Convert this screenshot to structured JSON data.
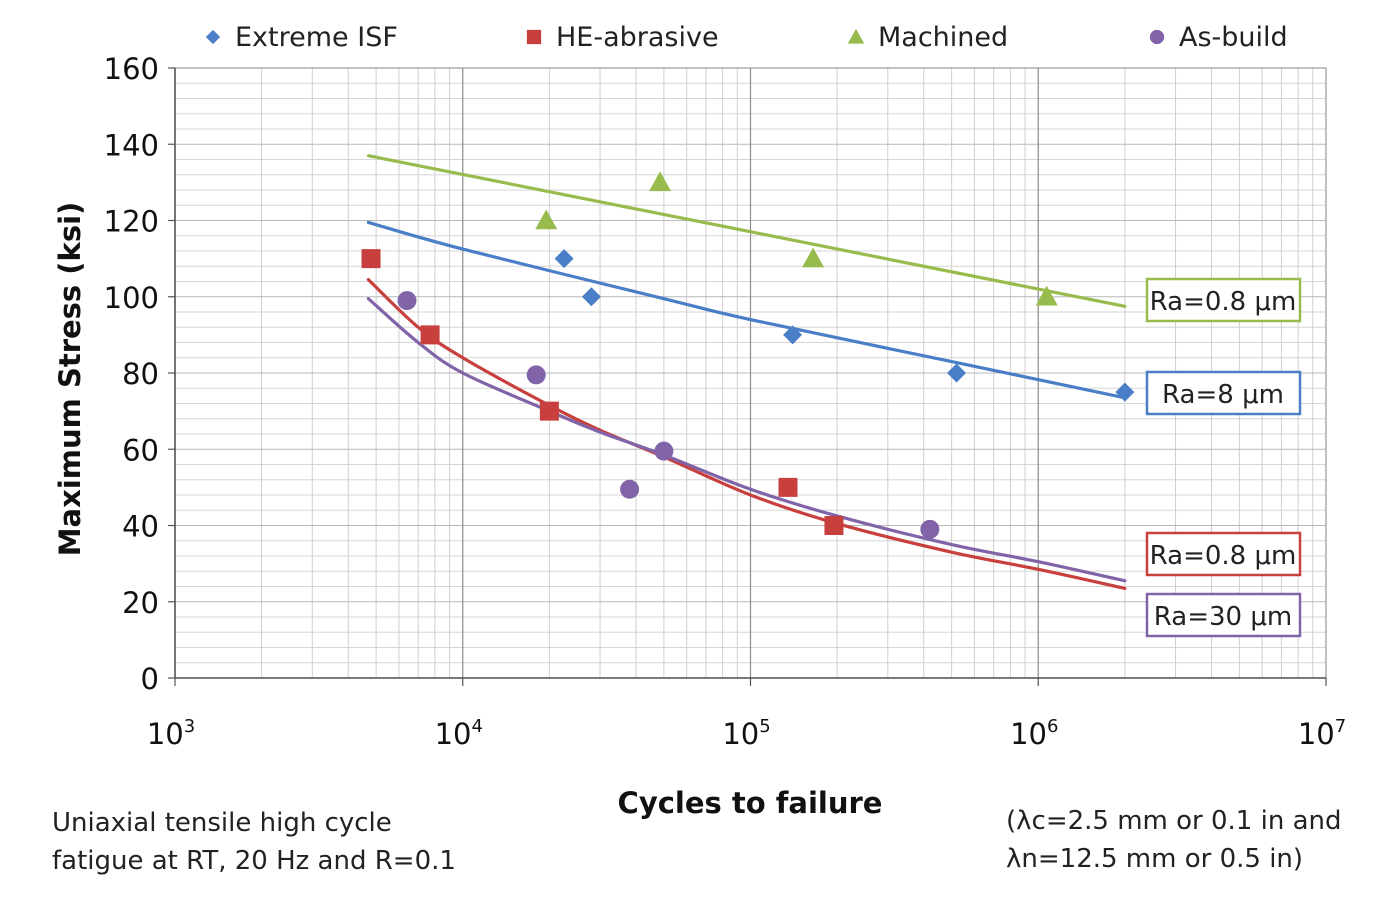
{
  "chart_data": {
    "type": "scatter",
    "xscale": "log",
    "xlim": [
      1000,
      10000000
    ],
    "ylim": [
      0,
      160
    ],
    "yticks": [
      0,
      20,
      40,
      60,
      80,
      100,
      120,
      140,
      160
    ],
    "xticks": [
      {
        "base": "10",
        "exp": "3"
      },
      {
        "base": "10",
        "exp": "4"
      },
      {
        "base": "10",
        "exp": "5"
      },
      {
        "base": "10",
        "exp": "6"
      },
      {
        "base": "10",
        "exp": "7"
      }
    ],
    "xlabel": "Cycles to failure",
    "ylabel": "Maximum Stress (ksi)",
    "grid": true,
    "legend_position": "top",
    "series": [
      {
        "name": "Extreme ISF",
        "marker": "diamond",
        "color": "#4a7ec6",
        "points": [
          [
            22500,
            110
          ],
          [
            28000,
            100
          ],
          [
            140000,
            90
          ],
          [
            520000,
            80
          ],
          [
            2000000,
            75
          ]
        ]
      },
      {
        "name": "HE-abrasive",
        "marker": "square",
        "color": "#c8403e",
        "points": [
          [
            4800,
            110
          ],
          [
            7700,
            90
          ],
          [
            20000,
            70
          ],
          [
            135000,
            50
          ],
          [
            195000,
            40
          ]
        ]
      },
      {
        "name": "Machined",
        "marker": "triangle",
        "color": "#97bb4c",
        "points": [
          [
            19500,
            120
          ],
          [
            48500,
            130
          ],
          [
            165000,
            110
          ],
          [
            1070000,
            100
          ]
        ]
      },
      {
        "name": "As-build",
        "marker": "circle",
        "color": "#8163a8",
        "points": [
          [
            6400,
            99
          ],
          [
            18000,
            79.5
          ],
          [
            38000,
            49.5
          ],
          [
            50000,
            59.5
          ],
          [
            420000,
            39
          ]
        ]
      }
    ],
    "trendlines": [
      {
        "label": "Ra=0.8 μm",
        "color": "#97bb4c",
        "points": [
          [
            4700,
            137
          ],
          [
            2000000,
            97.5
          ]
        ]
      },
      {
        "label": "Ra=8 μm",
        "color": "#4a7ec6",
        "points": [
          [
            4700,
            119.5
          ],
          [
            10000,
            112.5
          ],
          [
            50000,
            99.5
          ],
          [
            100000,
            94
          ],
          [
            500000,
            83
          ],
          [
            2000000,
            73.5
          ]
        ]
      },
      {
        "label": "Ra=0.8 μm",
        "color": "#c8403e",
        "points": [
          [
            4700,
            104.5
          ],
          [
            7000,
            92
          ],
          [
            10000,
            84
          ],
          [
            20000,
            71.5
          ],
          [
            30000,
            65
          ],
          [
            50000,
            58
          ],
          [
            100000,
            48
          ],
          [
            200000,
            40.5
          ],
          [
            500000,
            33
          ],
          [
            1000000,
            28.5
          ],
          [
            2000000,
            23.5
          ]
        ]
      },
      {
        "label": "Ra=30 μm",
        "color": "#8163a8",
        "points": [
          [
            4700,
            99.5
          ],
          [
            7000,
            88
          ],
          [
            10000,
            80
          ],
          [
            20000,
            70
          ],
          [
            30000,
            64.5
          ],
          [
            50000,
            58.5
          ],
          [
            100000,
            49.5
          ],
          [
            200000,
            42.5
          ],
          [
            500000,
            35
          ],
          [
            1000000,
            30.5
          ],
          [
            2000000,
            25.5
          ]
        ]
      }
    ],
    "annotations": {
      "left": [
        "Uniaxial tensile high cycle",
        "fatigue at RT, 20 Hz and R=0.1"
      ],
      "right": [
        "(λc=2.5 mm or 0.1 in and",
        "λn=12.5 mm or 0.5 in)"
      ]
    }
  }
}
